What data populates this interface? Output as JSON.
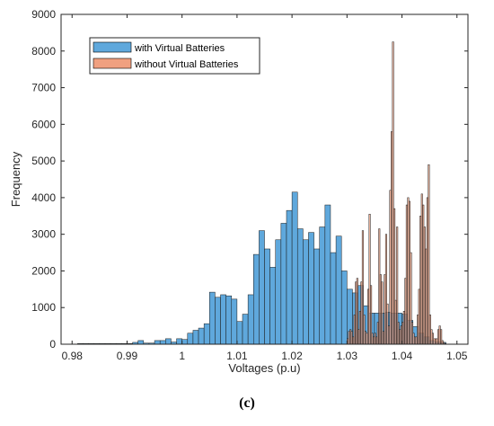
{
  "caption": "(c)",
  "chart_data": {
    "type": "bar",
    "title": "",
    "xlabel": "Voltages (p.u)",
    "ylabel": "Frequency",
    "xlim": [
      0.978,
      1.052
    ],
    "ylim": [
      0,
      9000
    ],
    "xticks": [
      0.98,
      0.99,
      1,
      1.01,
      1.02,
      1.03,
      1.04,
      1.05
    ],
    "xtick_labels": [
      "0.98",
      "0.99",
      "1",
      "1.01",
      "1.02",
      "1.03",
      "1.04",
      "1.05"
    ],
    "yticks": [
      0,
      1000,
      2000,
      3000,
      4000,
      5000,
      6000,
      7000,
      8000,
      9000
    ],
    "ytick_labels": [
      "0",
      "1000",
      "2000",
      "3000",
      "4000",
      "5000",
      "6000",
      "7000",
      "8000",
      "9000"
    ],
    "grid": false,
    "legend_position": "top-left",
    "series": [
      {
        "name": "with Virtual Batteries",
        "color": "#5fa8dc",
        "bin_width": 0.001,
        "x": [
          0.9815,
          0.9825,
          0.9835,
          0.9845,
          0.9855,
          0.9865,
          0.9875,
          0.9885,
          0.9895,
          0.9905,
          0.9915,
          0.9925,
          0.9935,
          0.9945,
          0.9955,
          0.9965,
          0.9975,
          0.9985,
          0.9995,
          1.0005,
          1.0015,
          1.0025,
          1.0035,
          1.0045,
          1.0055,
          1.0065,
          1.0075,
          1.0085,
          1.0095,
          1.0105,
          1.0115,
          1.0125,
          1.0135,
          1.0145,
          1.0155,
          1.0165,
          1.0175,
          1.0185,
          1.0195,
          1.0205,
          1.0215,
          1.0225,
          1.0235,
          1.0245,
          1.0255,
          1.0265,
          1.0275,
          1.0285,
          1.0295,
          1.0305,
          1.0315,
          1.0325,
          1.0335,
          1.0345,
          1.0355,
          1.0365,
          1.0375,
          1.0385,
          1.0395,
          1.0405,
          1.0415,
          1.0425,
          1.0435,
          1.0445,
          1.0455,
          1.0465,
          1.0475
        ],
        "values": [
          20,
          20,
          20,
          20,
          20,
          20,
          20,
          20,
          20,
          20,
          50,
          100,
          30,
          30,
          100,
          100,
          150,
          60,
          150,
          130,
          300,
          380,
          440,
          560,
          1420,
          1280,
          1350,
          1320,
          1230,
          620,
          820,
          1350,
          2450,
          3100,
          2600,
          2100,
          2850,
          3300,
          3650,
          4150,
          3150,
          2850,
          3050,
          2600,
          3200,
          3800,
          2500,
          2950,
          2000,
          1500,
          1400,
          1600,
          1050,
          850,
          850,
          850,
          870,
          850,
          850,
          820,
          650,
          480,
          300,
          200,
          100,
          60,
          50
        ]
      },
      {
        "name": "without Virtual Batteries",
        "color": "#f0a080",
        "bin_width": 0.00025,
        "x": [
          1.030125,
          1.030375,
          1.030625,
          1.030875,
          1.031125,
          1.031375,
          1.031625,
          1.031875,
          1.032125,
          1.032375,
          1.032625,
          1.032875,
          1.033125,
          1.033375,
          1.033625,
          1.033875,
          1.034125,
          1.034375,
          1.034625,
          1.034875,
          1.035125,
          1.035375,
          1.035625,
          1.035875,
          1.036125,
          1.036375,
          1.036625,
          1.036875,
          1.037125,
          1.037375,
          1.037625,
          1.037875,
          1.038125,
          1.038375,
          1.038625,
          1.038875,
          1.039125,
          1.039375,
          1.039625,
          1.039875,
          1.040125,
          1.040375,
          1.040625,
          1.040875,
          1.041125,
          1.041375,
          1.041625,
          1.041875,
          1.042125,
          1.042375,
          1.042625,
          1.042875,
          1.043125,
          1.043375,
          1.043625,
          1.043875,
          1.044125,
          1.044375,
          1.044625,
          1.044875,
          1.045125,
          1.045375,
          1.045625,
          1.045875,
          1.046125,
          1.046375,
          1.046625,
          1.046875,
          1.047125,
          1.047375,
          1.047625,
          1.047875
        ],
        "values": [
          150,
          350,
          400,
          350,
          200,
          800,
          1700,
          1800,
          400,
          900,
          1700,
          3100,
          800,
          350,
          300,
          1500,
          3550,
          1600,
          300,
          200,
          300,
          200,
          600,
          3150,
          1900,
          1700,
          350,
          1900,
          3000,
          1100,
          500,
          4200,
          5800,
          8250,
          3700,
          1200,
          3200,
          600,
          400,
          500,
          600,
          900,
          1800,
          3800,
          4000,
          3900,
          2500,
          600,
          300,
          200,
          200,
          800,
          1500,
          3500,
          4100,
          3800,
          3200,
          2600,
          4000,
          4900,
          800,
          400,
          300,
          150,
          150,
          150,
          400,
          500,
          400,
          100,
          50,
          20
        ]
      }
    ]
  }
}
